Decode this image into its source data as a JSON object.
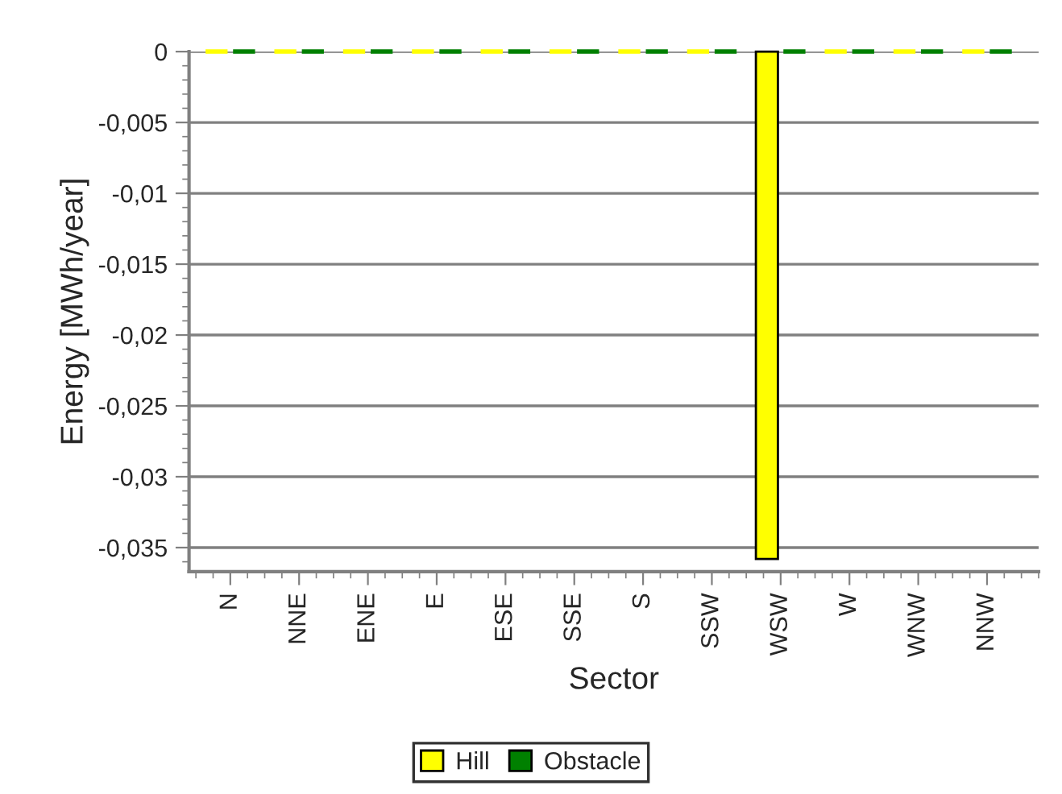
{
  "chart_data": {
    "type": "bar",
    "xlabel": "Sector",
    "ylabel": "Energy [MWh/year]",
    "categories": [
      "N",
      "NNE",
      "ENE",
      "E",
      "ESE",
      "SSE",
      "S",
      "SSW",
      "WSW",
      "W",
      "WNW",
      "NNW"
    ],
    "series": [
      {
        "name": "Hill",
        "color": "#ffff00",
        "values": [
          0,
          0,
          0,
          0,
          0,
          0,
          0,
          0,
          -0.0358,
          0,
          0,
          0
        ]
      },
      {
        "name": "Obstacle",
        "color": "#008000",
        "values": [
          0,
          0,
          0,
          0,
          0,
          0,
          0,
          0,
          0,
          0,
          0,
          0
        ]
      }
    ],
    "ylim": [
      -0.0367,
      0
    ],
    "yticks": [
      {
        "value": -0.035,
        "label": "-0,035"
      },
      {
        "value": -0.03,
        "label": "-0,03"
      },
      {
        "value": -0.025,
        "label": "-0,025"
      },
      {
        "value": -0.02,
        "label": "-0,02"
      },
      {
        "value": -0.015,
        "label": "-0,015"
      },
      {
        "value": -0.01,
        "label": "-0,01"
      },
      {
        "value": -0.005,
        "label": "-0,005"
      },
      {
        "value": 0,
        "label": "0"
      }
    ],
    "grid": "y",
    "legend": "bottom"
  }
}
